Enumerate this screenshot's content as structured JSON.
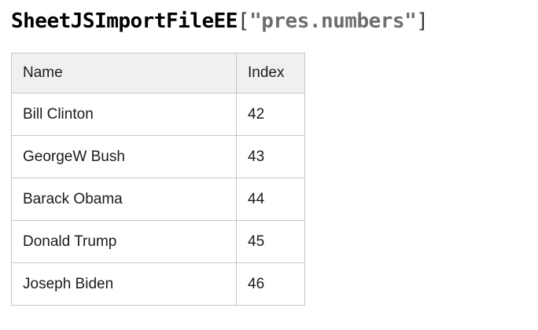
{
  "title": {
    "object_name": "SheetJSImportFileEE",
    "open_bracket": "[",
    "argument": "\"pres.numbers\"",
    "close_bracket": "]"
  },
  "table": {
    "columns": [
      "Name",
      "Index"
    ],
    "rows": [
      {
        "name": "Bill Clinton",
        "index": "42"
      },
      {
        "name": "GeorgeW Bush",
        "index": "43"
      },
      {
        "name": "Barack Obama",
        "index": "44"
      },
      {
        "name": "Donald Trump",
        "index": "45"
      },
      {
        "name": "Joseph Biden",
        "index": "46"
      }
    ]
  },
  "colors": {
    "header-background": "#f0f0f0",
    "table-border": "#c6c6c6",
    "title-argument-gray": "#6e6e6e",
    "text": "#1b1b1b"
  }
}
